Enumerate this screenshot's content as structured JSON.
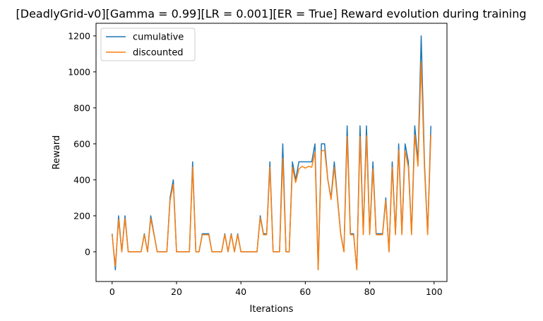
{
  "chart_data": {
    "type": "line",
    "title": "[DeadlyGrid-v0][Gamma = 0.99][LR = 0.001][ER = True] Reward evolution during training",
    "xlabel": "Iterations",
    "ylabel": "Reward",
    "xlim": [
      -5,
      104
    ],
    "ylim": [
      -165,
      1270
    ],
    "x_ticks": [
      0,
      20,
      40,
      60,
      80,
      100
    ],
    "y_ticks": [
      0,
      200,
      400,
      600,
      800,
      1000,
      1200
    ],
    "grid": false,
    "legend_position": "top-left",
    "x": [
      0,
      1,
      2,
      3,
      4,
      5,
      6,
      7,
      8,
      9,
      10,
      11,
      12,
      13,
      14,
      15,
      16,
      17,
      18,
      19,
      20,
      21,
      22,
      23,
      24,
      25,
      26,
      27,
      28,
      29,
      30,
      31,
      32,
      33,
      34,
      35,
      36,
      37,
      38,
      39,
      40,
      41,
      42,
      43,
      44,
      45,
      46,
      47,
      48,
      49,
      50,
      51,
      52,
      53,
      54,
      55,
      56,
      57,
      58,
      59,
      60,
      61,
      62,
      63,
      64,
      65,
      66,
      67,
      68,
      69,
      70,
      71,
      72,
      73,
      74,
      75,
      76,
      77,
      78,
      79,
      80,
      81,
      82,
      83,
      84,
      85,
      86,
      87,
      88,
      89,
      90,
      91,
      92,
      93,
      94,
      95,
      96,
      97,
      98,
      99
    ],
    "series": [
      {
        "name": "cumulative",
        "color": "#1f77b4",
        "values": [
          100,
          -100,
          200,
          0,
          200,
          0,
          0,
          0,
          0,
          0,
          100,
          0,
          200,
          100,
          0,
          0,
          0,
          0,
          300,
          400,
          0,
          0,
          0,
          0,
          0,
          500,
          0,
          0,
          100,
          100,
          100,
          0,
          0,
          0,
          0,
          100,
          0,
          100,
          0,
          100,
          0,
          0,
          0,
          0,
          0,
          0,
          200,
          100,
          100,
          500,
          0,
          0,
          0,
          600,
          0,
          0,
          500,
          400,
          500,
          500,
          500,
          500,
          500,
          600,
          -100,
          600,
          600,
          400,
          300,
          500,
          300,
          100,
          0,
          700,
          100,
          100,
          -100,
          700,
          100,
          700,
          100,
          500,
          100,
          100,
          100,
          300,
          0,
          500,
          100,
          600,
          100,
          600,
          500,
          100,
          700,
          500,
          1200,
          500,
          100,
          700
        ]
      },
      {
        "name": "discounted",
        "color": "#ff7f0e",
        "values": [
          95,
          -80,
          180,
          0,
          185,
          0,
          0,
          0,
          0,
          0,
          95,
          0,
          185,
          95,
          0,
          0,
          0,
          0,
          285,
          375,
          0,
          0,
          0,
          0,
          0,
          470,
          0,
          0,
          95,
          95,
          95,
          0,
          0,
          0,
          0,
          95,
          0,
          95,
          0,
          95,
          0,
          0,
          0,
          0,
          0,
          0,
          190,
          95,
          95,
          470,
          0,
          0,
          0,
          520,
          0,
          0,
          470,
          385,
          460,
          475,
          465,
          475,
          470,
          555,
          -100,
          560,
          565,
          400,
          290,
          470,
          290,
          95,
          0,
          640,
          95,
          95,
          -100,
          640,
          95,
          645,
          95,
          460,
          95,
          95,
          95,
          285,
          0,
          470,
          95,
          565,
          95,
          560,
          470,
          95,
          650,
          475,
          1055,
          470,
          95,
          650
        ]
      }
    ]
  }
}
